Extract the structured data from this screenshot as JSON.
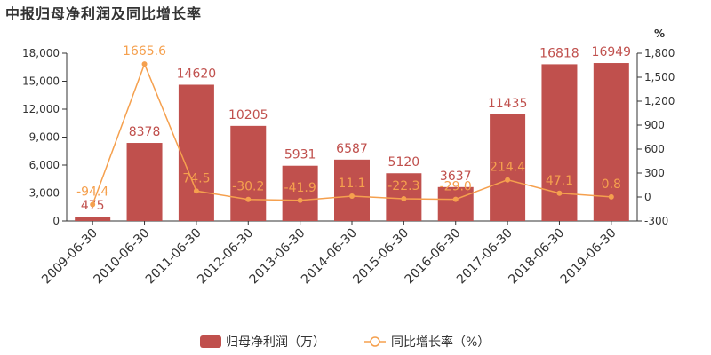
{
  "chart_data": {
    "type": "bar",
    "title": "中报归母净利润及同比增长率",
    "categories": [
      "2009-06-30",
      "2010-06-30",
      "2011-06-30",
      "2012-06-30",
      "2013-06-30",
      "2014-06-30",
      "2015-06-30",
      "2016-06-30",
      "2017-06-30",
      "2018-06-30",
      "2019-06-30"
    ],
    "series": [
      {
        "name": "归母净利润（万）",
        "type": "bar",
        "axis": "left",
        "color": "#c0504d",
        "values": [
          475,
          8378,
          14620,
          10205,
          5931,
          6587,
          5120,
          3637,
          11435,
          16818,
          16949
        ],
        "labels": [
          "475",
          "8378",
          "14620",
          "10205",
          "5931",
          "6587",
          "5120",
          "3637",
          "11435",
          "16818",
          "16949"
        ]
      },
      {
        "name": "同比增长率（%）",
        "type": "line",
        "axis": "right",
        "color": "#f5a04e",
        "values": [
          -94.4,
          1665.6,
          74.5,
          -30.2,
          -41.9,
          11.1,
          -22.3,
          -29.0,
          214.4,
          47.1,
          0.8
        ],
        "labels": [
          "-94.4",
          "1665.6",
          "74.5",
          "-30.2",
          "-41.9",
          "11.1",
          "-22.3",
          "-29.0",
          "214.4",
          "47.1",
          "0.8"
        ]
      }
    ],
    "y_left": {
      "min": 0,
      "max": 18000,
      "ticks": [
        0,
        3000,
        6000,
        9000,
        12000,
        15000,
        18000
      ],
      "tick_labels": [
        "0",
        "3,000",
        "6,000",
        "9,000",
        "12,000",
        "15,000",
        "18,000"
      ]
    },
    "y_right": {
      "unit": "%",
      "min": -300,
      "max": 1800,
      "ticks": [
        -300,
        0,
        300,
        600,
        900,
        1200,
        1500,
        1800
      ],
      "tick_labels": [
        "-300",
        "0",
        "300",
        "600",
        "900",
        "1,200",
        "1,500",
        "1,800"
      ]
    },
    "legend_position": "bottom-center",
    "grid": false
  }
}
